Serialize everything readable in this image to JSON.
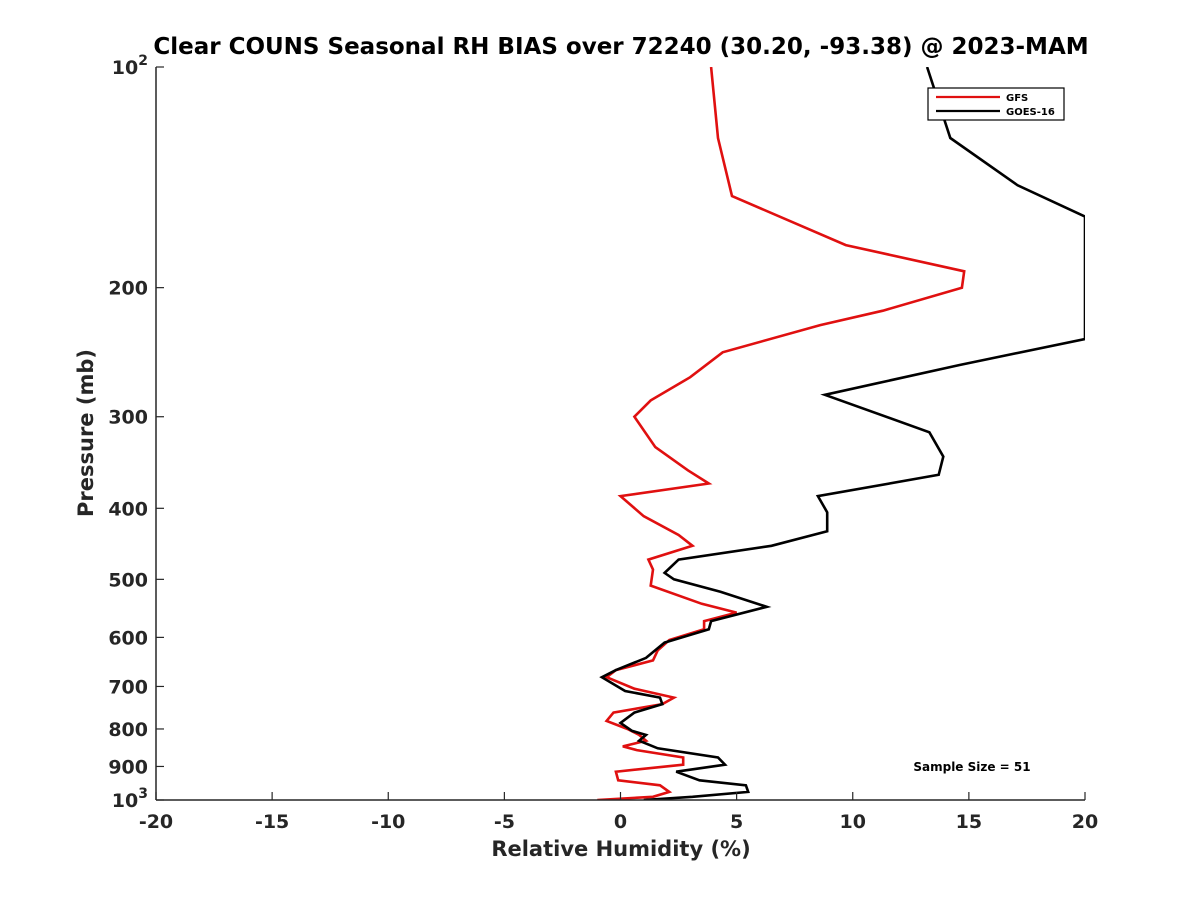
{
  "chart_data": {
    "type": "line",
    "title": "Clear COUNS Seasonal RH BIAS over 72240 (30.20, -93.38) @ 2023-MAM",
    "xlabel": "Relative Humidity (%)",
    "ylabel": "Pressure (mb)",
    "xlim": [
      -20,
      20
    ],
    "ylim": [
      100,
      1000
    ],
    "yscale": "log",
    "x_ticks": [
      -20,
      -15,
      -10,
      -5,
      0,
      5,
      10,
      15,
      20
    ],
    "x_tick_labels": [
      "-20",
      "-15",
      "-10",
      "-5",
      "0",
      "5",
      "10",
      "15",
      "20"
    ],
    "y_ticks": [
      100,
      200,
      300,
      400,
      500,
      600,
      700,
      800,
      900,
      1000
    ],
    "y_tick_labels": [
      "10^2",
      "200",
      "300",
      "400",
      "500",
      "600",
      "700",
      "800",
      "900",
      "10^3"
    ],
    "legend_position": "top-right",
    "annotation": "Sample Size = 51",
    "series": [
      {
        "name": "GFS",
        "color": "#e01010",
        "points": [
          [
            3.9,
            100
          ],
          [
            4.2,
            125
          ],
          [
            4.8,
            150
          ],
          [
            9.7,
            175
          ],
          [
            14.8,
            190
          ],
          [
            14.7,
            200
          ],
          [
            11.3,
            215
          ],
          [
            8.6,
            225
          ],
          [
            4.4,
            245
          ],
          [
            3.0,
            265
          ],
          [
            1.3,
            285
          ],
          [
            0.6,
            300
          ],
          [
            1.5,
            330
          ],
          [
            2.9,
            355
          ],
          [
            3.8,
            370
          ],
          [
            0.0,
            385
          ],
          [
            1.0,
            410
          ],
          [
            2.5,
            435
          ],
          [
            3.1,
            450
          ],
          [
            1.2,
            470
          ],
          [
            1.4,
            485
          ],
          [
            1.3,
            510
          ],
          [
            3.5,
            540
          ],
          [
            5.0,
            555
          ],
          [
            3.6,
            570
          ],
          [
            3.6,
            585
          ],
          [
            2.1,
            605
          ],
          [
            1.6,
            625
          ],
          [
            1.4,
            645
          ],
          [
            -0.2,
            665
          ],
          [
            -0.6,
            680
          ],
          [
            0.6,
            705
          ],
          [
            2.3,
            725
          ],
          [
            1.8,
            740
          ],
          [
            -0.3,
            760
          ],
          [
            -0.6,
            780
          ],
          [
            0.3,
            800
          ],
          [
            0.8,
            815
          ],
          [
            1.1,
            830
          ],
          [
            0.1,
            845
          ],
          [
            0.7,
            855
          ],
          [
            2.7,
            875
          ],
          [
            2.7,
            895
          ],
          [
            -0.2,
            915
          ],
          [
            -0.1,
            940
          ],
          [
            1.7,
            955
          ],
          [
            2.1,
            975
          ],
          [
            1.4,
            990
          ],
          [
            -1.0,
            1000
          ]
        ]
      },
      {
        "name": "GOES-16",
        "color": "#000000",
        "points": [
          [
            13.2,
            100
          ],
          [
            14.2,
            125
          ],
          [
            17.1,
            145
          ],
          [
            20.0,
            160
          ],
          [
            20.0,
            235
          ],
          [
            14.6,
            255
          ],
          [
            8.8,
            280
          ],
          [
            13.3,
            315
          ],
          [
            13.9,
            340
          ],
          [
            13.7,
            360
          ],
          [
            8.5,
            385
          ],
          [
            8.9,
            405
          ],
          [
            8.9,
            430
          ],
          [
            6.5,
            450
          ],
          [
            2.5,
            470
          ],
          [
            1.9,
            490
          ],
          [
            2.3,
            500
          ],
          [
            4.3,
            520
          ],
          [
            6.3,
            545
          ],
          [
            3.9,
            570
          ],
          [
            3.8,
            585
          ],
          [
            1.9,
            610
          ],
          [
            1.1,
            640
          ],
          [
            -0.2,
            665
          ],
          [
            -0.8,
            680
          ],
          [
            0.2,
            710
          ],
          [
            1.7,
            725
          ],
          [
            1.8,
            740
          ],
          [
            0.6,
            760
          ],
          [
            0.0,
            785
          ],
          [
            0.5,
            805
          ],
          [
            1.1,
            815
          ],
          [
            0.8,
            830
          ],
          [
            1.6,
            850
          ],
          [
            4.2,
            875
          ],
          [
            4.5,
            895
          ],
          [
            2.4,
            915
          ],
          [
            3.4,
            940
          ],
          [
            5.4,
            955
          ],
          [
            5.5,
            975
          ],
          [
            3.1,
            990
          ],
          [
            1.0,
            1000
          ]
        ]
      }
    ]
  }
}
